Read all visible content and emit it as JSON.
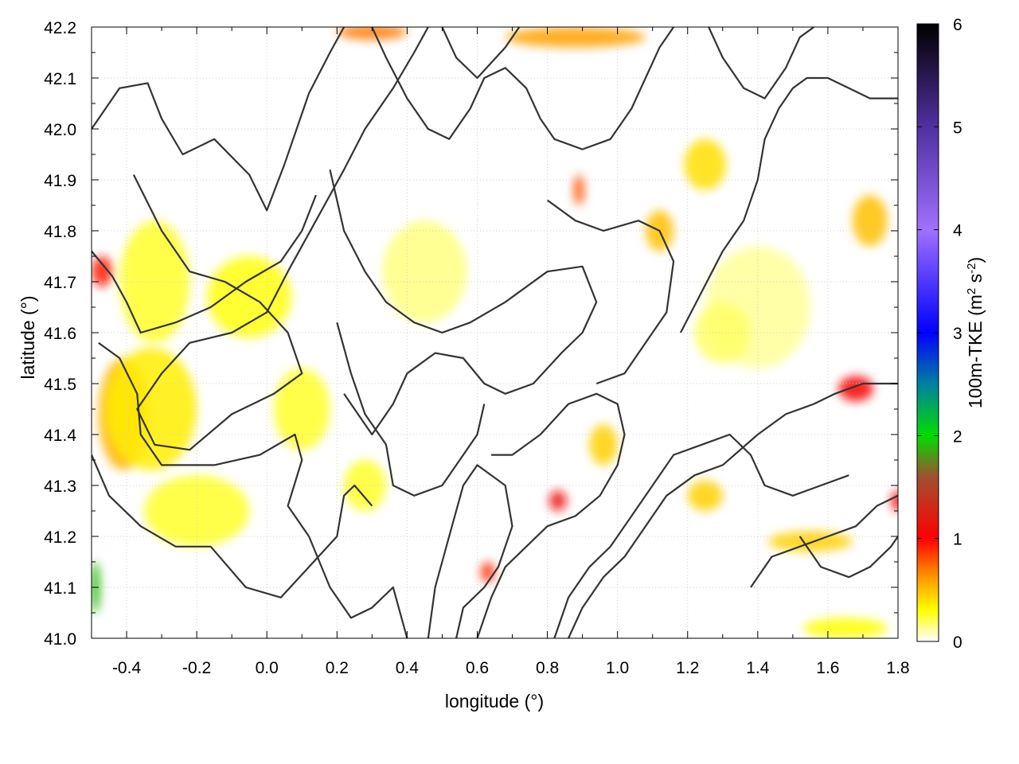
{
  "chart_data": {
    "type": "heatmap",
    "title": "",
    "xlabel": "longitude (°)",
    "ylabel": "latitude (°)",
    "xlim": [
      -0.5,
      1.8
    ],
    "ylim": [
      41.0,
      42.2
    ],
    "xticks": [
      -0.4,
      -0.2,
      0.0,
      0.2,
      0.4,
      0.6,
      0.8,
      1.0,
      1.2,
      1.4,
      1.6,
      1.8
    ],
    "xtick_labels": [
      "-0.4",
      "-0.2",
      "0.0",
      "0.2",
      "0.4",
      "0.6",
      "0.8",
      "1.0",
      "1.2",
      "1.4",
      "1.6",
      "1.8"
    ],
    "yticks": [
      41.0,
      41.1,
      41.2,
      41.3,
      41.4,
      41.5,
      41.6,
      41.7,
      41.8,
      41.9,
      42.0,
      42.1,
      42.2
    ],
    "ytick_labels": [
      "41.0",
      "41.1",
      "41.2",
      "41.3",
      "41.4",
      "41.5",
      "41.6",
      "41.7",
      "41.8",
      "41.9",
      "42.0",
      "42.1",
      "42.2"
    ],
    "grid": true,
    "colorbar": {
      "label_main": "100m-TKE (m",
      "label_sup1": "2",
      "label_mid": " s",
      "label_sup2": "-2",
      "label_end": ")",
      "range": [
        0,
        6
      ],
      "ticks": [
        0,
        1,
        2,
        3,
        4,
        5,
        6
      ],
      "tick_labels": [
        "0",
        "1",
        "2",
        "3",
        "4",
        "5",
        "6"
      ],
      "stops": [
        {
          "v": 0.0,
          "color": "#ffffff"
        },
        {
          "v": 0.3,
          "color": "#ffff00"
        },
        {
          "v": 0.6,
          "color": "#ffa000"
        },
        {
          "v": 1.0,
          "color": "#ff0000"
        },
        {
          "v": 1.6,
          "color": "#a05030"
        },
        {
          "v": 2.0,
          "color": "#00dd00"
        },
        {
          "v": 2.5,
          "color": "#0080a0"
        },
        {
          "v": 3.0,
          "color": "#0000ff"
        },
        {
          "v": 4.0,
          "color": "#a070ff"
        },
        {
          "v": 5.0,
          "color": "#5030a0"
        },
        {
          "v": 6.0,
          "color": "#000000"
        }
      ]
    },
    "hotspots": [
      {
        "lon": -0.41,
        "lat": 41.44,
        "rx": 0.07,
        "ry": 0.11,
        "tke": 0.55
      },
      {
        "lon": -0.33,
        "lat": 41.45,
        "rx": 0.13,
        "ry": 0.12,
        "tke": 0.35
      },
      {
        "lon": -0.32,
        "lat": 41.7,
        "rx": 0.1,
        "ry": 0.12,
        "tke": 0.25
      },
      {
        "lon": -0.05,
        "lat": 41.67,
        "rx": 0.12,
        "ry": 0.08,
        "tke": 0.28
      },
      {
        "lon": 0.1,
        "lat": 41.45,
        "rx": 0.08,
        "ry": 0.08,
        "tke": 0.25
      },
      {
        "lon": -0.2,
        "lat": 41.25,
        "rx": 0.15,
        "ry": 0.07,
        "tke": 0.25
      },
      {
        "lon": 0.28,
        "lat": 41.3,
        "rx": 0.06,
        "ry": 0.05,
        "tke": 0.25
      },
      {
        "lon": -0.47,
        "lat": 41.72,
        "rx": 0.03,
        "ry": 0.03,
        "tke": 0.95
      },
      {
        "lon": -0.49,
        "lat": 41.1,
        "rx": 0.015,
        "ry": 0.05,
        "tke": 1.9
      },
      {
        "lon": 0.83,
        "lat": 41.27,
        "rx": 0.025,
        "ry": 0.02,
        "tke": 1.1
      },
      {
        "lon": 0.96,
        "lat": 41.38,
        "rx": 0.04,
        "ry": 0.04,
        "tke": 0.45
      },
      {
        "lon": 1.12,
        "lat": 41.8,
        "rx": 0.04,
        "ry": 0.04,
        "tke": 0.5
      },
      {
        "lon": 1.25,
        "lat": 41.93,
        "rx": 0.06,
        "ry": 0.05,
        "tke": 0.4
      },
      {
        "lon": 1.68,
        "lat": 41.49,
        "rx": 0.05,
        "ry": 0.025,
        "tke": 1.05
      },
      {
        "lon": 1.72,
        "lat": 41.82,
        "rx": 0.05,
        "ry": 0.05,
        "tke": 0.5
      },
      {
        "lon": 0.89,
        "lat": 41.88,
        "rx": 0.015,
        "ry": 0.03,
        "tke": 0.8
      },
      {
        "lon": 0.63,
        "lat": 41.13,
        "rx": 0.02,
        "ry": 0.02,
        "tke": 0.9
      },
      {
        "lon": 1.55,
        "lat": 41.19,
        "rx": 0.12,
        "ry": 0.02,
        "tke": 0.45
      },
      {
        "lon": 1.65,
        "lat": 41.02,
        "rx": 0.12,
        "ry": 0.02,
        "tke": 0.3
      },
      {
        "lon": 0.88,
        "lat": 42.18,
        "rx": 0.2,
        "ry": 0.02,
        "tke": 0.6
      },
      {
        "lon": 0.3,
        "lat": 42.19,
        "rx": 0.1,
        "ry": 0.015,
        "tke": 0.7
      },
      {
        "lon": 1.25,
        "lat": 41.28,
        "rx": 0.05,
        "ry": 0.03,
        "tke": 0.45
      },
      {
        "lon": 0.45,
        "lat": 41.72,
        "rx": 0.12,
        "ry": 0.1,
        "tke": 0.15
      },
      {
        "lon": 1.4,
        "lat": 41.65,
        "rx": 0.15,
        "ry": 0.12,
        "tke": 0.12
      },
      {
        "lon": 1.8,
        "lat": 41.27,
        "rx": 0.02,
        "ry": 0.02,
        "tke": 1.0
      },
      {
        "lon": 1.3,
        "lat": 41.6,
        "rx": 0.08,
        "ry": 0.06,
        "tke": 0.18
      }
    ],
    "contours": [
      [
        [
          -0.5,
          42.0
        ],
        [
          -0.42,
          42.08
        ],
        [
          -0.34,
          42.09
        ],
        [
          -0.3,
          42.02
        ],
        [
          -0.24,
          41.95
        ],
        [
          -0.15,
          41.98
        ],
        [
          -0.05,
          41.91
        ],
        [
          0.0,
          41.84
        ],
        [
          0.05,
          41.93
        ],
        [
          0.12,
          42.07
        ],
        [
          0.18,
          42.15
        ],
        [
          0.22,
          42.2
        ]
      ],
      [
        [
          -0.38,
          41.91
        ],
        [
          -0.3,
          41.8
        ],
        [
          -0.22,
          41.72
        ],
        [
          -0.12,
          41.7
        ],
        [
          -0.02,
          41.66
        ],
        [
          0.06,
          41.6
        ],
        [
          0.1,
          41.52
        ],
        [
          0.02,
          41.48
        ],
        [
          -0.1,
          41.44
        ],
        [
          -0.22,
          41.37
        ],
        [
          -0.32,
          41.38
        ],
        [
          -0.37,
          41.45
        ],
        [
          -0.3,
          41.52
        ],
        [
          -0.22,
          41.58
        ],
        [
          -0.1,
          41.6
        ],
        [
          0.0,
          41.64
        ],
        [
          0.06,
          41.72
        ],
        [
          0.14,
          41.82
        ],
        [
          0.22,
          41.92
        ],
        [
          0.28,
          42.0
        ],
        [
          0.36,
          42.08
        ],
        [
          0.42,
          42.15
        ],
        [
          0.46,
          42.2
        ]
      ],
      [
        [
          -0.48,
          41.58
        ],
        [
          -0.42,
          41.55
        ],
        [
          -0.37,
          41.48
        ],
        [
          -0.36,
          41.4
        ],
        [
          -0.3,
          41.34
        ],
        [
          -0.15,
          41.34
        ],
        [
          -0.02,
          41.36
        ],
        [
          0.08,
          41.4
        ],
        [
          0.1,
          41.35
        ],
        [
          0.06,
          41.26
        ],
        [
          0.12,
          41.2
        ],
        [
          0.18,
          41.1
        ],
        [
          0.24,
          41.04
        ],
        [
          0.3,
          41.06
        ],
        [
          0.36,
          41.1
        ],
        [
          0.4,
          41.0
        ]
      ],
      [
        [
          -0.5,
          41.36
        ],
        [
          -0.45,
          41.28
        ],
        [
          -0.36,
          41.22
        ],
        [
          -0.26,
          41.18
        ],
        [
          -0.16,
          41.18
        ],
        [
          -0.06,
          41.1
        ],
        [
          0.04,
          41.08
        ],
        [
          0.12,
          41.14
        ],
        [
          0.2,
          41.2
        ],
        [
          0.22,
          41.28
        ],
        [
          0.25,
          41.3
        ],
        [
          0.3,
          41.26
        ]
      ],
      [
        [
          0.22,
          41.48
        ],
        [
          0.3,
          41.4
        ],
        [
          0.36,
          41.46
        ],
        [
          0.4,
          41.52
        ],
        [
          0.48,
          41.56
        ],
        [
          0.56,
          41.55
        ],
        [
          0.62,
          41.5
        ],
        [
          0.68,
          41.48
        ],
        [
          0.76,
          41.5
        ],
        [
          0.84,
          41.56
        ],
        [
          0.9,
          41.6
        ],
        [
          0.94,
          41.66
        ],
        [
          0.9,
          41.73
        ],
        [
          0.8,
          41.72
        ],
        [
          0.68,
          41.66
        ],
        [
          0.58,
          41.62
        ],
        [
          0.5,
          41.6
        ],
        [
          0.42,
          41.62
        ],
        [
          0.34,
          41.66
        ],
        [
          0.28,
          41.72
        ],
        [
          0.22,
          41.8
        ],
        [
          0.18,
          41.92
        ]
      ],
      [
        [
          0.46,
          41.0
        ],
        [
          0.48,
          41.1
        ],
        [
          0.52,
          41.2
        ],
        [
          0.56,
          41.3
        ],
        [
          0.6,
          41.34
        ],
        [
          0.68,
          41.3
        ],
        [
          0.7,
          41.22
        ],
        [
          0.66,
          41.14
        ],
        [
          0.62,
          41.1
        ],
        [
          0.56,
          41.06
        ],
        [
          0.54,
          41.0
        ]
      ],
      [
        [
          0.6,
          41.0
        ],
        [
          0.64,
          41.08
        ],
        [
          0.68,
          41.14
        ],
        [
          0.74,
          41.18
        ],
        [
          0.8,
          41.22
        ],
        [
          0.88,
          41.24
        ],
        [
          0.95,
          41.28
        ],
        [
          1.0,
          41.34
        ],
        [
          1.02,
          41.4
        ],
        [
          1.0,
          41.46
        ],
        [
          0.94,
          41.48
        ],
        [
          0.86,
          41.46
        ],
        [
          0.78,
          41.4
        ],
        [
          0.7,
          41.36
        ],
        [
          0.64,
          41.36
        ]
      ],
      [
        [
          0.82,
          41.0
        ],
        [
          0.86,
          41.08
        ],
        [
          0.92,
          41.14
        ],
        [
          0.98,
          41.18
        ],
        [
          1.04,
          41.24
        ],
        [
          1.1,
          41.3
        ],
        [
          1.16,
          41.36
        ],
        [
          1.24,
          41.38
        ],
        [
          1.32,
          41.4
        ],
        [
          1.38,
          41.36
        ],
        [
          1.42,
          41.3
        ],
        [
          1.5,
          41.28
        ],
        [
          1.58,
          41.3
        ],
        [
          1.66,
          41.32
        ]
      ],
      [
        [
          0.86,
          41.0
        ],
        [
          0.9,
          41.06
        ],
        [
          0.96,
          41.12
        ],
        [
          1.02,
          41.16
        ],
        [
          1.08,
          41.22
        ],
        [
          1.14,
          41.28
        ],
        [
          1.22,
          41.32
        ],
        [
          1.3,
          41.34
        ],
        [
          1.4,
          41.4
        ],
        [
          1.48,
          41.44
        ],
        [
          1.56,
          41.46
        ],
        [
          1.62,
          41.48
        ],
        [
          1.7,
          41.5
        ],
        [
          1.8,
          41.5
        ]
      ],
      [
        [
          1.18,
          41.6
        ],
        [
          1.24,
          41.68
        ],
        [
          1.3,
          41.76
        ],
        [
          1.36,
          41.82
        ],
        [
          1.4,
          41.9
        ],
        [
          1.42,
          41.98
        ],
        [
          1.46,
          42.04
        ],
        [
          1.5,
          42.08
        ],
        [
          1.54,
          42.1
        ],
        [
          1.6,
          42.1
        ],
        [
          1.66,
          42.08
        ],
        [
          1.72,
          42.06
        ],
        [
          1.8,
          42.06
        ]
      ],
      [
        [
          1.26,
          42.2
        ],
        [
          1.3,
          42.14
        ],
        [
          1.36,
          42.08
        ],
        [
          1.42,
          42.06
        ],
        [
          1.48,
          42.12
        ],
        [
          1.52,
          42.18
        ],
        [
          1.56,
          42.2
        ]
      ],
      [
        [
          0.8,
          41.86
        ],
        [
          0.88,
          41.82
        ],
        [
          0.96,
          41.8
        ],
        [
          1.06,
          41.82
        ],
        [
          1.12,
          41.8
        ],
        [
          1.16,
          41.74
        ],
        [
          1.14,
          41.64
        ],
        [
          1.08,
          41.58
        ],
        [
          1.02,
          41.52
        ],
        [
          0.94,
          41.5
        ]
      ],
      [
        [
          0.3,
          42.2
        ],
        [
          0.34,
          42.14
        ],
        [
          0.4,
          42.06
        ],
        [
          0.46,
          42.0
        ],
        [
          0.52,
          41.98
        ],
        [
          0.58,
          42.04
        ],
        [
          0.62,
          42.1
        ],
        [
          0.68,
          42.12
        ],
        [
          0.74,
          42.08
        ],
        [
          0.78,
          42.02
        ],
        [
          0.82,
          41.98
        ],
        [
          0.9,
          41.96
        ],
        [
          0.98,
          41.98
        ],
        [
          1.04,
          42.04
        ],
        [
          1.08,
          42.1
        ],
        [
          1.12,
          42.16
        ],
        [
          1.16,
          42.2
        ]
      ],
      [
        [
          0.5,
          42.2
        ],
        [
          0.54,
          42.14
        ],
        [
          0.6,
          42.1
        ],
        [
          0.68,
          42.16
        ],
        [
          0.72,
          42.2
        ]
      ],
      [
        [
          1.52,
          41.2
        ],
        [
          1.58,
          41.14
        ],
        [
          1.66,
          41.12
        ],
        [
          1.72,
          41.14
        ],
        [
          1.78,
          41.18
        ],
        [
          1.8,
          41.2
        ]
      ],
      [
        [
          -0.5,
          41.76
        ],
        [
          -0.44,
          41.71
        ],
        [
          -0.4,
          41.66
        ],
        [
          -0.36,
          41.6
        ],
        [
          -0.26,
          41.62
        ],
        [
          -0.16,
          41.65
        ],
        [
          -0.06,
          41.7
        ],
        [
          0.04,
          41.74
        ],
        [
          0.1,
          41.8
        ],
        [
          0.14,
          41.87
        ]
      ],
      [
        [
          0.2,
          41.62
        ],
        [
          0.24,
          41.52
        ],
        [
          0.28,
          41.44
        ],
        [
          0.34,
          41.38
        ],
        [
          0.36,
          41.3
        ],
        [
          0.42,
          41.28
        ],
        [
          0.5,
          41.3
        ],
        [
          0.56,
          41.36
        ],
        [
          0.6,
          41.4
        ],
        [
          0.62,
          41.46
        ]
      ],
      [
        [
          1.38,
          41.1
        ],
        [
          1.44,
          41.16
        ],
        [
          1.52,
          41.18
        ],
        [
          1.6,
          41.2
        ],
        [
          1.68,
          41.22
        ],
        [
          1.74,
          41.26
        ],
        [
          1.8,
          41.28
        ]
      ]
    ]
  }
}
